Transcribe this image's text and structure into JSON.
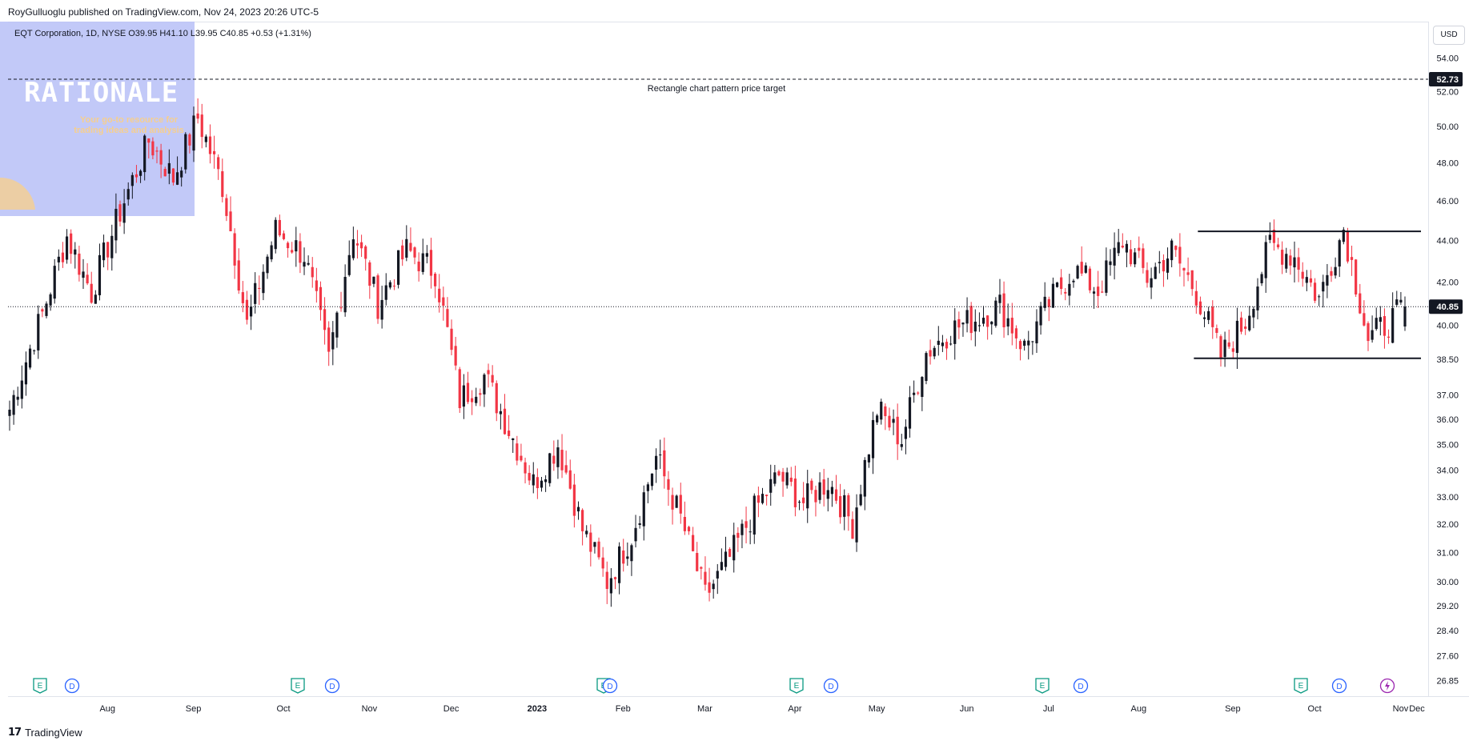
{
  "header": {
    "published_line": "RoyGulluoglu published on TradingView.com, Nov 24, 2023 20:26 UTC-5"
  },
  "legend": {
    "text": "EQT Corporation, 1D, NYSE  O39.95  H41.10  L39.95  C40.85  +0.53 (+1.31%)"
  },
  "currency": "USD",
  "watermark": {
    "title": "RATIONALE",
    "tagline": "Your go-to resource for trading ideas and analysis"
  },
  "footer": {
    "brand": "TradingView"
  },
  "colors": {
    "up": "#131722",
    "down": "#f23645",
    "event_earnings": "#089981",
    "event_dividend": "#2962ff",
    "event_split": "#9c27b0",
    "watermark_panel": "#b7c0f7"
  },
  "chart_data": {
    "type": "candlestick",
    "symbol": "EQT Corporation",
    "interval": "1D",
    "exchange": "NYSE",
    "scale": "log",
    "ylim": [
      26.5,
      56.0
    ],
    "y_ticks": [
      "54.00",
      "52.00",
      "50.00",
      "48.00",
      "46.00",
      "44.00",
      "42.00",
      "40.00",
      "38.50",
      "37.00",
      "36.00",
      "35.00",
      "34.00",
      "33.00",
      "32.00",
      "31.00",
      "30.00",
      "29.20",
      "28.40",
      "27.60",
      "26.85"
    ],
    "x_ticks": [
      {
        "label": "Aug",
        "year": false
      },
      {
        "label": "Sep",
        "year": false
      },
      {
        "label": "Oct",
        "year": false
      },
      {
        "label": "Nov",
        "year": false
      },
      {
        "label": "Dec",
        "year": false
      },
      {
        "label": "2023",
        "year": true
      },
      {
        "label": "Feb",
        "year": false
      },
      {
        "label": "Mar",
        "year": false
      },
      {
        "label": "Apr",
        "year": false
      },
      {
        "label": "May",
        "year": false
      },
      {
        "label": "Jun",
        "year": false
      },
      {
        "label": "Jul",
        "year": false
      },
      {
        "label": "Aug",
        "year": false
      },
      {
        "label": "Sep",
        "year": false
      },
      {
        "label": "Oct",
        "year": false
      },
      {
        "label": "Nov",
        "year": false
      },
      {
        "label": "Dec",
        "year": false
      }
    ],
    "last_price": 40.85,
    "target": {
      "price": 52.73,
      "label": "Rectangle chart pattern price target"
    },
    "rectangle": {
      "upper": 44.45,
      "lower": 38.55,
      "start": "Aug 2023",
      "end": "Nov 2023"
    },
    "anchors": [
      {
        "i": 0,
        "p": 36.4
      },
      {
        "i": 8,
        "p": 40.5
      },
      {
        "i": 14,
        "p": 44.2
      },
      {
        "i": 20,
        "p": 41.5
      },
      {
        "i": 28,
        "p": 46.0
      },
      {
        "i": 34,
        "p": 49.2
      },
      {
        "i": 40,
        "p": 47.2
      },
      {
        "i": 46,
        "p": 50.5
      },
      {
        "i": 52,
        "p": 46.8
      },
      {
        "i": 58,
        "p": 40.0
      },
      {
        "i": 65,
        "p": 44.5
      },
      {
        "i": 72,
        "p": 43.3
      },
      {
        "i": 78,
        "p": 38.5
      },
      {
        "i": 84,
        "p": 44.5
      },
      {
        "i": 90,
        "p": 41.0
      },
      {
        "i": 97,
        "p": 43.5
      },
      {
        "i": 104,
        "p": 42.5
      },
      {
        "i": 110,
        "p": 36.8
      },
      {
        "i": 116,
        "p": 37.8
      },
      {
        "i": 122,
        "p": 35.6
      },
      {
        "i": 128,
        "p": 33.5
      },
      {
        "i": 134,
        "p": 35.0
      },
      {
        "i": 140,
        "p": 31.8
      },
      {
        "i": 146,
        "p": 30.0
      },
      {
        "i": 152,
        "p": 31.6
      },
      {
        "i": 158,
        "p": 34.5
      },
      {
        "i": 164,
        "p": 32.2
      },
      {
        "i": 170,
        "p": 29.5
      },
      {
        "i": 176,
        "p": 30.8
      },
      {
        "i": 182,
        "p": 32.5
      },
      {
        "i": 188,
        "p": 33.8
      },
      {
        "i": 194,
        "p": 32.8
      },
      {
        "i": 200,
        "p": 33.6
      },
      {
        "i": 206,
        "p": 32.0
      },
      {
        "i": 212,
        "p": 36.4
      },
      {
        "i": 218,
        "p": 35.2
      },
      {
        "i": 224,
        "p": 38.8
      },
      {
        "i": 230,
        "p": 39.8
      },
      {
        "i": 236,
        "p": 40.3
      },
      {
        "i": 242,
        "p": 40.9
      },
      {
        "i": 248,
        "p": 39.0
      },
      {
        "i": 254,
        "p": 41.0
      },
      {
        "i": 260,
        "p": 42.6
      },
      {
        "i": 266,
        "p": 41.6
      },
      {
        "i": 272,
        "p": 44.0
      },
      {
        "i": 278,
        "p": 42.2
      },
      {
        "i": 284,
        "p": 43.5
      },
      {
        "i": 290,
        "p": 41.5
      },
      {
        "i": 296,
        "p": 38.6
      },
      {
        "i": 302,
        "p": 40.2
      },
      {
        "i": 308,
        "p": 43.8
      },
      {
        "i": 314,
        "p": 43.2
      },
      {
        "i": 320,
        "p": 41.2
      },
      {
        "i": 326,
        "p": 44.6
      },
      {
        "i": 332,
        "p": 39.4
      },
      {
        "i": 338,
        "p": 40.3
      },
      {
        "i": 341,
        "p": 40.85
      }
    ],
    "events": [
      {
        "type": "E",
        "bar": 13
      },
      {
        "type": "D",
        "bar": 16
      },
      {
        "type": "E",
        "bar": 74
      },
      {
        "type": "D",
        "bar": 81
      },
      {
        "type": "E",
        "bar": 148
      },
      {
        "type": "D",
        "bar": 149
      },
      {
        "type": "E",
        "bar": 195
      },
      {
        "type": "D",
        "bar": 202
      },
      {
        "type": "E",
        "bar": 253
      },
      {
        "type": "D",
        "bar": 261
      },
      {
        "type": "E",
        "bar": 314
      },
      {
        "type": "D",
        "bar": 322
      },
      {
        "type": "S",
        "bar": 333
      }
    ]
  }
}
